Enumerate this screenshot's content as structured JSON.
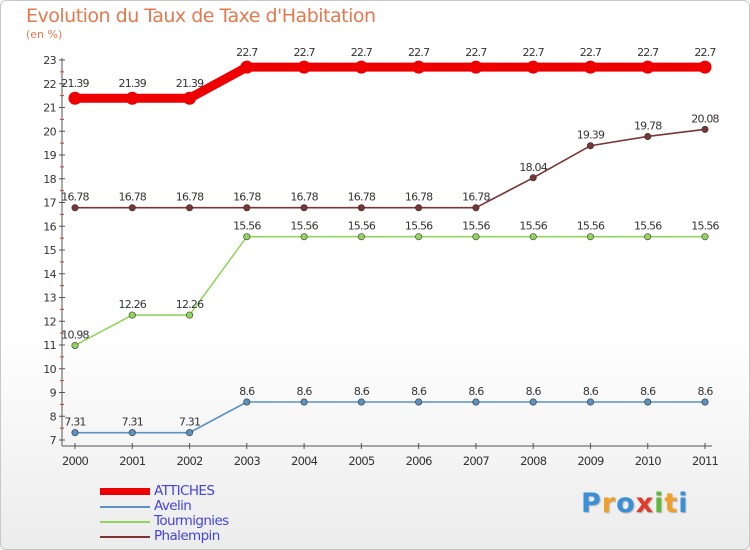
{
  "title": "Evolution du Taux de Taxe d'Habitation",
  "subtitle": "(en %)",
  "chart_data": {
    "type": "line",
    "title": "Evolution du Taux de Taxe d'Habitation",
    "ylabel": "(en %)",
    "xlabel": "",
    "x": [
      "2000",
      "2001",
      "2002",
      "2003",
      "2004",
      "2005",
      "2006",
      "2007",
      "2008",
      "2009",
      "2010",
      "2011"
    ],
    "ylim": [
      7,
      23
    ],
    "yticks": [
      "7",
      "8",
      "9",
      "10",
      "11",
      "12",
      "13",
      "14",
      "15",
      "16",
      "17",
      "18",
      "19",
      "20",
      "21",
      "22",
      "23"
    ],
    "grid": false,
    "legend_position": "bottom-left",
    "series": [
      {
        "name": "ATTICHES",
        "color": "#ee0000",
        "values": [
          21.39,
          21.39,
          21.39,
          22.7,
          22.7,
          22.7,
          22.7,
          22.7,
          22.7,
          22.7,
          22.7,
          22.7
        ],
        "labels": [
          "21.39",
          "21.39",
          "21.39",
          "22.7",
          "22.7",
          "22.7",
          "22.7",
          "22.7",
          "22.7",
          "22.7",
          "22.7",
          "22.7"
        ]
      },
      {
        "name": "Avelin",
        "color": "#5b92c4",
        "values": [
          7.31,
          7.31,
          7.31,
          8.6,
          8.6,
          8.6,
          8.6,
          8.6,
          8.6,
          8.6,
          8.6,
          8.6
        ],
        "labels": [
          "7.31",
          "7.31",
          "7.31",
          "8.6",
          "8.6",
          "8.6",
          "8.6",
          "8.6",
          "8.6",
          "8.6",
          "8.6",
          "8.6"
        ]
      },
      {
        "name": "Tourmignies",
        "color": "#93d45e",
        "values": [
          10.98,
          12.26,
          12.26,
          15.56,
          15.56,
          15.56,
          15.56,
          15.56,
          15.56,
          15.56,
          15.56,
          15.56
        ],
        "labels": [
          "10.98",
          "12.26",
          "12.26",
          "15.56",
          "15.56",
          "15.56",
          "15.56",
          "15.56",
          "15.56",
          "15.56",
          "15.56",
          "15.56"
        ]
      },
      {
        "name": "Phalempin",
        "color": "#7a3535",
        "values": [
          16.78,
          16.78,
          16.78,
          16.78,
          16.78,
          16.78,
          16.78,
          16.78,
          18.04,
          19.39,
          19.78,
          20.08
        ],
        "labels": [
          "16.78",
          "16.78",
          "16.78",
          "16.78",
          "16.78",
          "16.78",
          "16.78",
          "16.78",
          "18.04",
          "19.39",
          "19.78",
          "20.08"
        ]
      }
    ]
  },
  "logo": {
    "letters": [
      "P",
      "r",
      "o",
      "x",
      "i",
      "t",
      "i"
    ],
    "colors": [
      "#3b8fd6",
      "#f0a02a",
      "#3b8fd6",
      "#e23a2a",
      "#5fb83a",
      "#f0a02a",
      "#3b8fd6"
    ]
  }
}
